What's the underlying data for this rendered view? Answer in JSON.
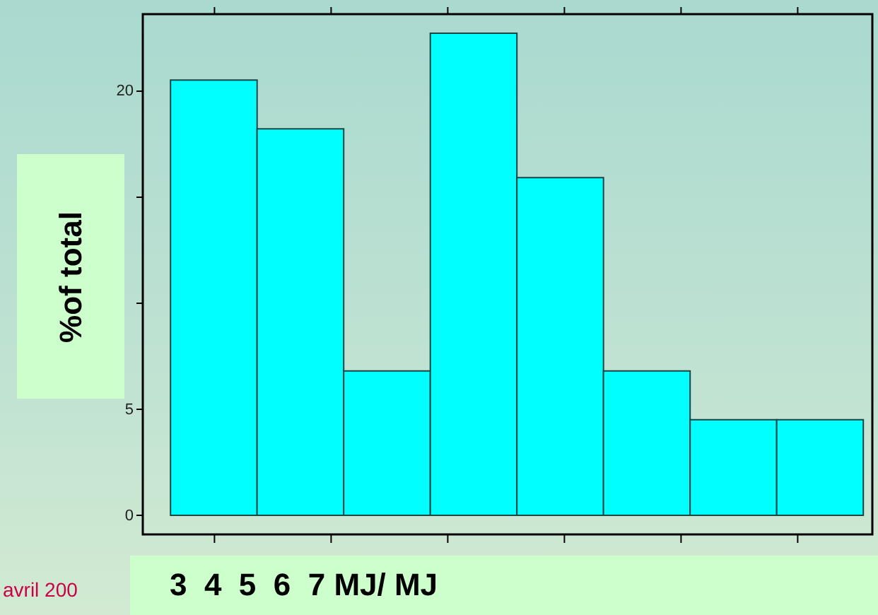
{
  "chart_data": {
    "type": "bar",
    "xlabel": "3  4  5  6  7 MJ/ MJ",
    "ylabel": "%of total",
    "annotations": [
      "avril 200"
    ],
    "categories": [
      null,
      null,
      null,
      null,
      null,
      null,
      null,
      null
    ],
    "values": [
      20.5,
      18.2,
      6.8,
      22.7,
      15.9,
      6.8,
      4.5,
      4.5
    ],
    "color": "#00ffff",
    "ylim": [
      -0.9,
      23.6
    ],
    "yticks": [
      0,
      5,
      {
        "value": 10,
        "label": null
      },
      {
        "value": 15,
        "label": null
      },
      20
    ]
  }
}
